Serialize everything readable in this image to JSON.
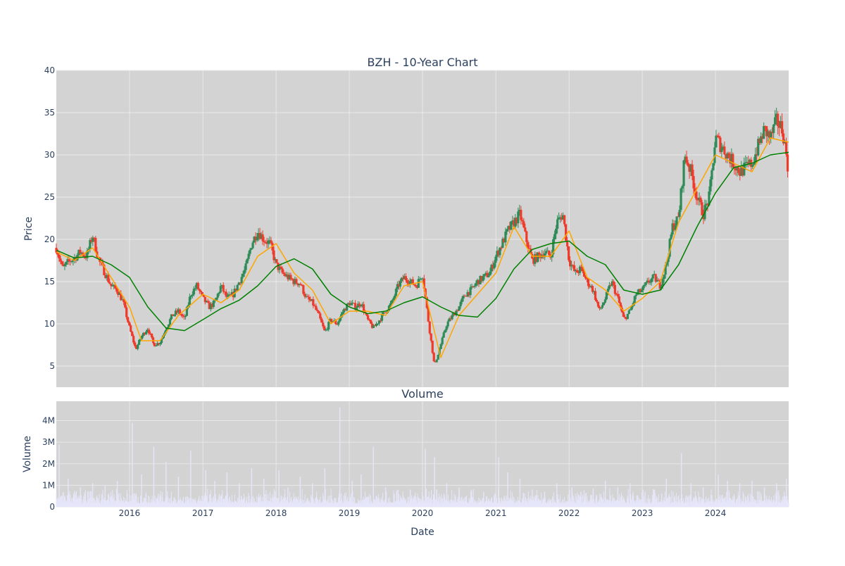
{
  "chart_data": [
    {
      "type": "candlestick",
      "title": "BZH - 10-Year Chart",
      "xlabel": "",
      "ylabel": "Price",
      "ylim": [
        2.5,
        40
      ],
      "xlim": [
        "2015-01-01",
        "2024-12-31"
      ],
      "yticks": [
        5,
        10,
        15,
        20,
        25,
        30,
        35,
        40
      ],
      "grid": true,
      "legend": "none",
      "colors": {
        "increasing": "#2e8b57",
        "decreasing": "#ef3b2c",
        "sma_fast": "#ffa500",
        "sma_slow": "#008000",
        "background": "#d3d3d3",
        "grid": "#e8e8ea",
        "text": "#2a3f5f"
      },
      "series": [
        {
          "kind": "close",
          "x": [
            "2015-01-02",
            "2015-02-01",
            "2015-03-01",
            "2015-04-01",
            "2015-05-01",
            "2015-06-01",
            "2015-07-01",
            "2015-08-01",
            "2015-09-01",
            "2015-10-01",
            "2015-11-01",
            "2015-12-01",
            "2016-01-01",
            "2016-02-01",
            "2016-03-01",
            "2016-04-01",
            "2016-05-01",
            "2016-06-01",
            "2016-07-01",
            "2016-08-01",
            "2016-09-01",
            "2016-10-01",
            "2016-11-01",
            "2016-12-01",
            "2017-01-01",
            "2017-02-01",
            "2017-03-01",
            "2017-04-01",
            "2017-05-01",
            "2017-06-01",
            "2017-07-01",
            "2017-08-01",
            "2017-09-01",
            "2017-10-01",
            "2017-11-01",
            "2017-12-01",
            "2018-01-01",
            "2018-02-01",
            "2018-03-01",
            "2018-04-01",
            "2018-05-01",
            "2018-06-01",
            "2018-07-01",
            "2018-08-01",
            "2018-09-01",
            "2018-10-01",
            "2018-11-01",
            "2018-12-01",
            "2019-01-01",
            "2019-02-01",
            "2019-03-01",
            "2019-04-01",
            "2019-05-01",
            "2019-06-01",
            "2019-07-01",
            "2019-08-01",
            "2019-09-01",
            "2019-10-01",
            "2019-11-01",
            "2019-12-01",
            "2020-01-01",
            "2020-02-01",
            "2020-03-01",
            "2020-04-01",
            "2020-05-01",
            "2020-06-01",
            "2020-07-01",
            "2020-08-01",
            "2020-09-01",
            "2020-10-01",
            "2020-11-01",
            "2020-12-01",
            "2021-01-01",
            "2021-02-01",
            "2021-03-01",
            "2021-04-01",
            "2021-05-01",
            "2021-06-01",
            "2021-07-01",
            "2021-08-01",
            "2021-09-01",
            "2021-10-01",
            "2021-11-01",
            "2021-12-01",
            "2022-01-01",
            "2022-02-01",
            "2022-03-01",
            "2022-04-01",
            "2022-05-01",
            "2022-06-01",
            "2022-07-01",
            "2022-08-01",
            "2022-09-01",
            "2022-10-01",
            "2022-11-01",
            "2022-12-01",
            "2023-01-01",
            "2023-02-01",
            "2023-03-01",
            "2023-04-01",
            "2023-05-01",
            "2023-06-01",
            "2023-07-01",
            "2023-08-01",
            "2023-09-01",
            "2023-10-01",
            "2023-11-01",
            "2023-12-01",
            "2024-01-01",
            "2024-02-01",
            "2024-03-01",
            "2024-04-01",
            "2024-05-01",
            "2024-06-01",
            "2024-07-01",
            "2024-08-01",
            "2024-09-01",
            "2024-10-01",
            "2024-11-01",
            "2024-12-01",
            "2024-12-31"
          ],
          "values": [
            19.0,
            16.5,
            17.3,
            17.8,
            18.5,
            18.0,
            20.5,
            17.5,
            16.0,
            14.5,
            14.0,
            12.5,
            9.5,
            7.0,
            8.5,
            9.5,
            7.5,
            7.8,
            9.5,
            11.0,
            11.5,
            10.5,
            13.5,
            14.5,
            13.0,
            12.0,
            12.5,
            14.5,
            13.0,
            13.5,
            15.0,
            16.5,
            19.5,
            21.0,
            20.0,
            19.5,
            17.0,
            16.0,
            15.5,
            15.0,
            14.8,
            13.0,
            12.5,
            11.0,
            9.0,
            10.5,
            10.0,
            11.5,
            12.5,
            12.0,
            12.5,
            10.5,
            9.5,
            10.5,
            11.5,
            12.5,
            14.5,
            15.5,
            15.0,
            14.5,
            16.0,
            10.0,
            5.0,
            7.5,
            10.0,
            11.0,
            12.0,
            13.5,
            14.0,
            15.0,
            15.5,
            16.0,
            18.0,
            19.5,
            21.0,
            22.0,
            23.0,
            20.0,
            17.5,
            18.0,
            18.5,
            18.0,
            22.0,
            23.0,
            17.5,
            16.0,
            16.5,
            15.0,
            14.0,
            11.5,
            13.0,
            15.0,
            13.0,
            10.5,
            11.5,
            13.5,
            14.0,
            15.0,
            15.5,
            14.5,
            17.0,
            21.5,
            22.5,
            30.0,
            28.0,
            25.0,
            23.0,
            25.0,
            32.0,
            31.0,
            30.0,
            29.0,
            28.0,
            28.5,
            29.0,
            31.0,
            33.0,
            32.0,
            34.0,
            33.0,
            28.0
          ]
        },
        {
          "kind": "sma_fast",
          "x": [
            "2015-01-02",
            "2015-04-01",
            "2015-07-01",
            "2015-10-01",
            "2016-01-01",
            "2016-03-01",
            "2016-06-01",
            "2016-09-01",
            "2017-01-01",
            "2017-04-01",
            "2017-07-01",
            "2017-10-01",
            "2018-01-01",
            "2018-04-01",
            "2018-07-01",
            "2018-10-01",
            "2019-01-01",
            "2019-04-01",
            "2019-07-01",
            "2019-10-01",
            "2020-01-01",
            "2020-04-01",
            "2020-07-01",
            "2020-10-01",
            "2021-01-01",
            "2021-04-01",
            "2021-07-01",
            "2021-10-01",
            "2022-01-01",
            "2022-04-01",
            "2022-07-01",
            "2022-10-01",
            "2023-01-01",
            "2023-04-01",
            "2023-07-01",
            "2023-10-01",
            "2024-01-01",
            "2024-04-01",
            "2024-07-01",
            "2024-10-01",
            "2024-12-31"
          ],
          "values": [
            18.5,
            17.5,
            19.0,
            15.5,
            12.0,
            8.0,
            8.0,
            11.0,
            13.5,
            12.5,
            14.0,
            18.0,
            19.5,
            16.0,
            14.0,
            10.0,
            11.5,
            11.5,
            11.0,
            14.5,
            15.0,
            6.0,
            11.0,
            13.5,
            16.0,
            21.5,
            18.0,
            18.0,
            21.0,
            15.5,
            14.0,
            11.5,
            13.0,
            15.0,
            22.0,
            26.0,
            30.0,
            29.0,
            28.0,
            32.0,
            31.5
          ]
        },
        {
          "kind": "sma_slow",
          "x": [
            "2015-01-02",
            "2015-04-01",
            "2015-07-01",
            "2015-10-01",
            "2016-01-01",
            "2016-04-01",
            "2016-07-01",
            "2016-10-01",
            "2017-01-01",
            "2017-04-01",
            "2017-07-01",
            "2017-10-01",
            "2018-01-01",
            "2018-04-01",
            "2018-07-01",
            "2018-10-01",
            "2019-01-01",
            "2019-04-01",
            "2019-07-01",
            "2019-10-01",
            "2020-01-01",
            "2020-04-01",
            "2020-07-01",
            "2020-10-01",
            "2021-01-01",
            "2021-04-01",
            "2021-07-01",
            "2021-10-01",
            "2022-01-01",
            "2022-04-01",
            "2022-07-01",
            "2022-10-01",
            "2023-01-01",
            "2023-04-01",
            "2023-07-01",
            "2023-10-01",
            "2024-01-01",
            "2024-04-01",
            "2024-07-01",
            "2024-10-01",
            "2024-12-31"
          ],
          "values": [
            18.7,
            17.8,
            18.0,
            17.0,
            15.5,
            12.0,
            9.5,
            9.2,
            10.5,
            11.8,
            12.8,
            14.5,
            16.8,
            17.7,
            16.5,
            13.5,
            12.0,
            11.2,
            11.5,
            12.5,
            13.2,
            12.0,
            11.0,
            10.8,
            13.0,
            16.5,
            18.8,
            19.5,
            19.8,
            18.0,
            17.0,
            14.0,
            13.5,
            14.0,
            17.0,
            21.5,
            25.5,
            28.5,
            29.0,
            30.0,
            30.3
          ]
        }
      ]
    },
    {
      "type": "bar",
      "title": "Volume",
      "xlabel": "Date",
      "ylabel": "Volume",
      "ylim": [
        0,
        4900000
      ],
      "yticks": [
        0,
        1000000,
        2000000,
        3000000,
        4000000
      ],
      "ytick_labels": [
        "0",
        "1M",
        "2M",
        "3M",
        "4M"
      ],
      "xtick_labels": [
        "2016",
        "2017",
        "2018",
        "2019",
        "2020",
        "2021",
        "2022",
        "2023",
        "2024"
      ],
      "colors": {
        "bar": "#e6e6fa"
      },
      "x": [
        "2015-01-15",
        "2015-03-01",
        "2015-05-01",
        "2015-07-01",
        "2015-09-01",
        "2015-11-01",
        "2016-01-15",
        "2016-03-01",
        "2016-05-01",
        "2016-07-01",
        "2016-09-01",
        "2016-11-01",
        "2017-01-15",
        "2017-03-01",
        "2017-05-01",
        "2017-07-01",
        "2017-09-01",
        "2017-11-01",
        "2018-01-15",
        "2018-03-01",
        "2018-05-01",
        "2018-07-01",
        "2018-09-01",
        "2018-11-15",
        "2019-01-15",
        "2019-03-01",
        "2019-05-01",
        "2019-07-01",
        "2019-09-01",
        "2019-11-01",
        "2020-01-15",
        "2020-03-01",
        "2020-05-01",
        "2020-07-01",
        "2020-09-01",
        "2020-11-01",
        "2021-01-15",
        "2021-03-01",
        "2021-05-01",
        "2021-07-01",
        "2021-09-01",
        "2021-11-01",
        "2022-01-15",
        "2022-03-01",
        "2022-05-01",
        "2022-07-01",
        "2022-09-01",
        "2022-11-01",
        "2023-01-15",
        "2023-03-01",
        "2023-05-01",
        "2023-07-15",
        "2023-09-01",
        "2023-11-01",
        "2024-01-15",
        "2024-03-01",
        "2024-05-01",
        "2024-07-01",
        "2024-09-01",
        "2024-11-01",
        "2024-12-20"
      ],
      "values": [
        2900000,
        1300000,
        900000,
        1100000,
        1000000,
        1200000,
        3900000,
        1500000,
        2800000,
        2100000,
        1400000,
        2600000,
        1700000,
        1200000,
        1600000,
        1100000,
        1800000,
        1300000,
        1700000,
        900000,
        1400000,
        1100000,
        1800000,
        4600000,
        1200000,
        1500000,
        2800000,
        900000,
        800000,
        800000,
        2700000,
        2300000,
        1100000,
        900000,
        800000,
        700000,
        2300000,
        1600000,
        1300000,
        800000,
        700000,
        1100000,
        900000,
        700000,
        800000,
        1200000,
        900000,
        1100000,
        700000,
        800000,
        1300000,
        2500000,
        1100000,
        900000,
        1500000,
        1200000,
        1100000,
        1200000,
        900000,
        1100000,
        1300000
      ]
    }
  ]
}
